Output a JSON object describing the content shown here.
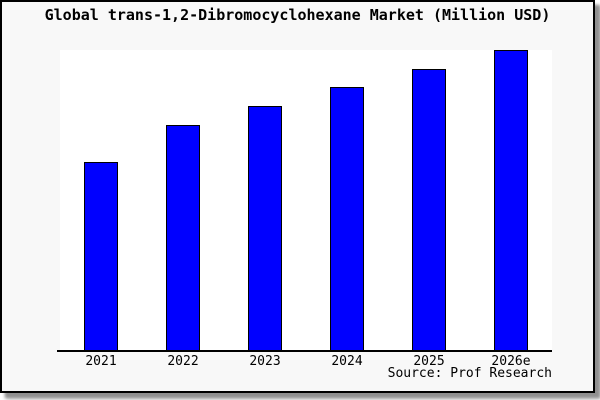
{
  "colors": {
    "bar_fill": "#0000ff",
    "bar_border": "#000000",
    "plot_background": "#ffffff",
    "frame_background": "#f8f8f8",
    "frame_border": "#000000",
    "shadow": "#8f8f8f",
    "text": "#000000"
  },
  "source_text": "Source: Prof Research",
  "chart_data": {
    "type": "bar",
    "title": "Global trans-1,2-Dibromocyclohexane Market (Million USD)",
    "unit": "Million USD",
    "categories": [
      "2021",
      "2022",
      "2023",
      "2024",
      "2025",
      "2026e"
    ],
    "values_relative_pct": [
      62.8,
      75.1,
      81.4,
      87.7,
      93.7,
      100
    ],
    "values_note": "No y-axis scale is shown in the image; values are bar heights as percent of the tallest bar (2026e = 100).",
    "xlabel": "",
    "ylabel": "",
    "y_axis_visible": false,
    "grid": false,
    "legend": "none",
    "annotation": "Source: Prof Research"
  }
}
